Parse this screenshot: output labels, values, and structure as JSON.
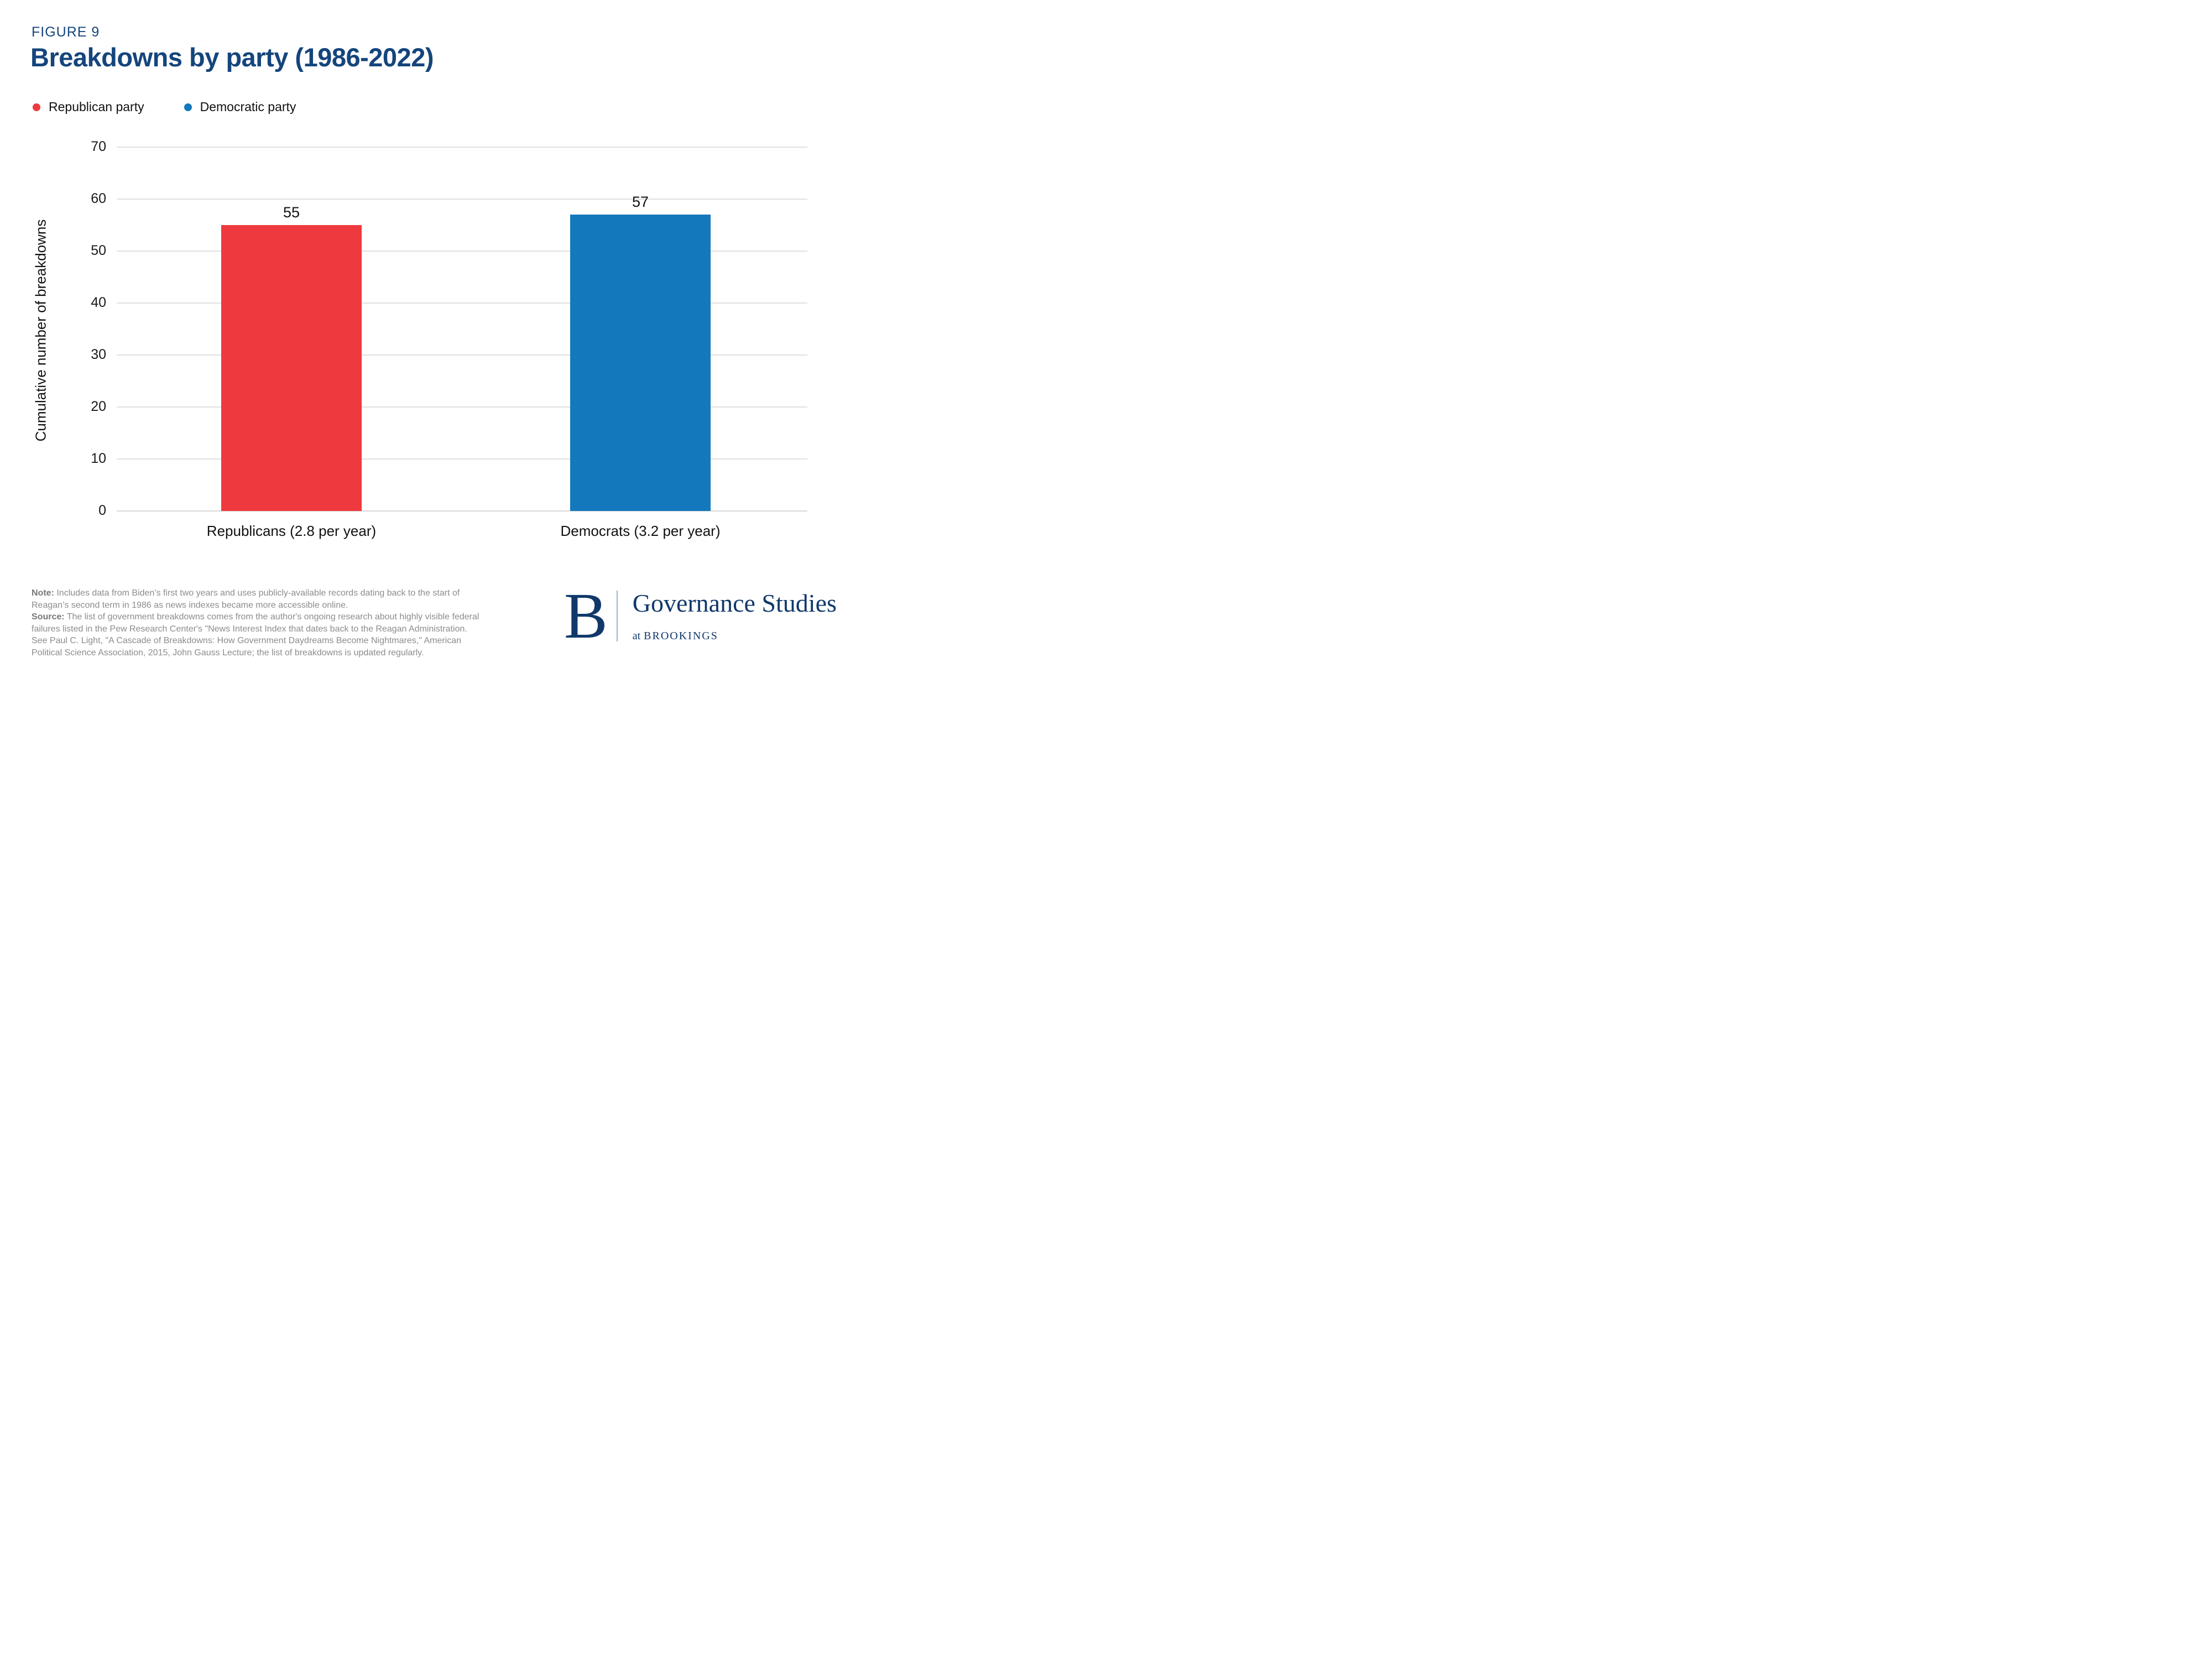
{
  "figure_label": "FIGURE 9",
  "title": "Breakdowns by party (1986-2022)",
  "legend": [
    {
      "label": "Republican party",
      "color": "#ee3a3e"
    },
    {
      "label": "Democratic party",
      "color": "#1478bd"
    }
  ],
  "chart_data": {
    "type": "bar",
    "title": "Breakdowns by party (1986-2022)",
    "categories": [
      "Republicans (2.8 per year)",
      "Democrats (3.2 per year)"
    ],
    "values": [
      55,
      57
    ],
    "value_labels": [
      "55",
      "57"
    ],
    "bar_colors": [
      "#ee3a3e",
      "#1478bd"
    ],
    "xlabel": "",
    "ylabel": "Cumulative number of breakdowns",
    "ylim": [
      0,
      70
    ],
    "yticks": [
      0,
      10,
      20,
      30,
      40,
      50,
      60,
      70
    ],
    "grid": true,
    "legend_entries": [
      "Republican party",
      "Democratic party"
    ],
    "legend_position": "top-left"
  },
  "footer": {
    "note_label": "Note:",
    "note_text": "Includes data from Biden’s first two years and uses publicly-available records dating back to the start of Reagan’s second term in 1986 as news indexes became more accessible online.",
    "source_label": "Source:",
    "source_text": "The list of government breakdowns comes from the author's ongoing research about highly visible federal failures listed in the Pew Research Center's \"News Interest Index that dates back to the Reagan Administration. See Paul C. Light, \"A Cascade of Breakdowns: How Government Daydreams Become Nightmares,\" American Political Science Association, 2015, John Gauss Lecture; the list of breakdowns is updated regularly."
  },
  "logo": {
    "initial": "B",
    "name": "Governance Studies",
    "sub_prefix": "at",
    "sub_org": "BROOKINGS"
  },
  "colors": {
    "title_navy": "#15457c",
    "logo_navy": "#10386a",
    "republican_red": "#ee3a3e",
    "democrat_blue": "#1478bd",
    "gridline": "#e0e0e0",
    "baseline": "#d8d8d8",
    "note_gray": "#8c8c8c"
  }
}
